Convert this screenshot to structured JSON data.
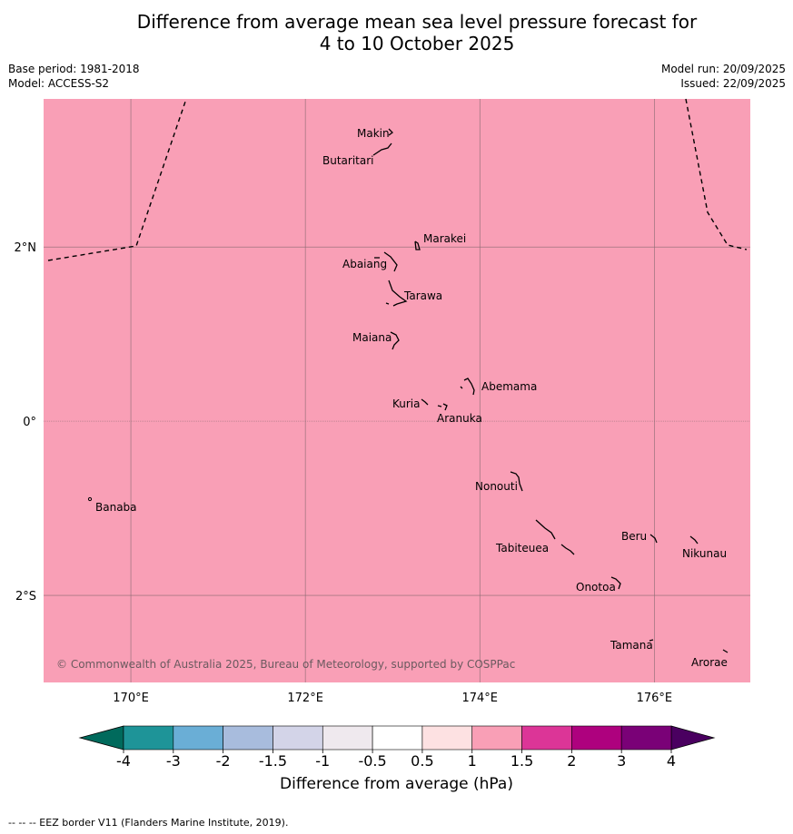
{
  "title": {
    "line1": "Difference from average mean sea level pressure forecast for",
    "line2": "4 to 10 October 2025"
  },
  "meta": {
    "base_period": "Base period: 1981-2018",
    "model": "Model: ACCESS-S2",
    "model_run": "Model run: 20/09/2025",
    "issued": "Issued: 22/09/2025"
  },
  "map": {
    "fill_color": "#f99fb6",
    "lon_range": [
      169.0,
      177.1
    ],
    "lat_range": [
      -3.0,
      3.7
    ],
    "lon_ticks": [
      {
        "lon": 170,
        "label": "170°E"
      },
      {
        "lon": 172,
        "label": "172°E"
      },
      {
        "lon": 174,
        "label": "174°E"
      },
      {
        "lon": 176,
        "label": "176°E"
      }
    ],
    "lat_ticks": [
      {
        "lat": 2,
        "label": "2°N"
      },
      {
        "lat": 0,
        "label": "0°"
      },
      {
        "lat": -2,
        "label": "2°S"
      }
    ],
    "places": [
      {
        "name": "Makin",
        "lon": 172.99,
        "lat": 3.38
      },
      {
        "name": "Butaritari",
        "lon": 172.79,
        "lat": 3.07
      },
      {
        "name": "Marakei",
        "lon": 173.28,
        "lat": 2.0
      },
      {
        "name": "Abaiang",
        "lon": 172.97,
        "lat": 1.83
      },
      {
        "name": "Tarawa",
        "lon": 173.03,
        "lat": 1.42
      },
      {
        "name": "Maiana",
        "lon": 173.0,
        "lat": 0.95
      },
      {
        "name": "Abemama",
        "lon": 173.87,
        "lat": 0.4
      },
      {
        "name": "Kuria",
        "lon": 173.4,
        "lat": 0.23
      },
      {
        "name": "Aranuka",
        "lon": 173.6,
        "lat": 0.17
      },
      {
        "name": "Banaba",
        "lon": 169.55,
        "lat": -0.88
      },
      {
        "name": "Nonouti",
        "lon": 174.4,
        "lat": -0.65
      },
      {
        "name": "Tabiteuea",
        "lon": 174.8,
        "lat": -1.4
      },
      {
        "name": "Beru",
        "lon": 175.98,
        "lat": -1.33
      },
      {
        "name": "Nikunau",
        "lon": 176.45,
        "lat": -1.35
      },
      {
        "name": "Onotoa",
        "lon": 175.57,
        "lat": -1.85
      },
      {
        "name": "Tamana",
        "lon": 175.98,
        "lat": -2.5
      },
      {
        "name": "Arorae",
        "lon": 176.82,
        "lat": -2.65
      }
    ],
    "copyright": "© Commonwealth of Australia 2025, Bureau of Meteorology, supported by COSPPac"
  },
  "colorbar": {
    "title": "Difference from average (hPa)",
    "ticks": [
      "-4",
      "-3",
      "-2",
      "-1.5",
      "-1",
      "-0.5",
      "0.5",
      "1",
      "1.5",
      "2",
      "3",
      "4"
    ],
    "under_color": "#006a5c",
    "over_color": "#4a0060",
    "colors": [
      "#1e9498",
      "#6aaed6",
      "#a8bcdd",
      "#d3d4e8",
      "#efe9ee",
      "#ffffff",
      "#fde1e2",
      "#f99fb6",
      "#dc3597",
      "#ae017e",
      "#7a0177"
    ]
  },
  "footnote": "--  --  -- EEZ border V11 (Flanders Marine Institute, 2019)."
}
